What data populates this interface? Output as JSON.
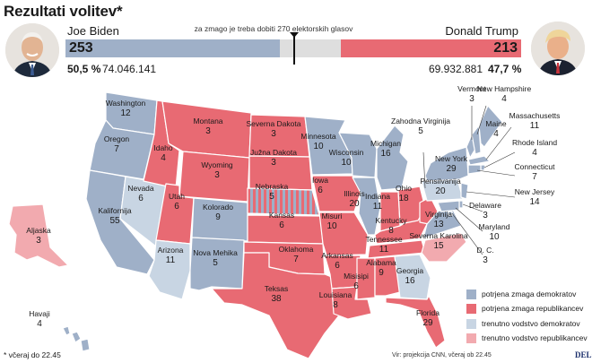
{
  "title": "Rezultati volitev*",
  "threshold_text": "za zmago je treba dobiti 270 elektorskih glasov",
  "colors": {
    "dem_won": "#9fb0c8",
    "rep_won": "#e86a73",
    "dem_lead": "#c8d5e3",
    "rep_lead": "#f2aaaf",
    "undecided": "#dedede"
  },
  "candidates": {
    "dem": {
      "name": "Joe Biden",
      "electoral_votes": "253",
      "percent": "50,5 %",
      "votes": "74.046.141",
      "avatar_icon": "biden-portrait"
    },
    "rep": {
      "name": "Donald Trump",
      "electoral_votes": "213",
      "percent": "47,7 %",
      "votes": "69.932.881",
      "avatar_icon": "trump-portrait"
    }
  },
  "bar": {
    "total": 538,
    "dem": 253,
    "rep": 213,
    "threshold": 270
  },
  "states": [
    {
      "name": "Washington",
      "ev": "12",
      "status": "dem_won"
    },
    {
      "name": "Oregon",
      "ev": "7",
      "status": "dem_won"
    },
    {
      "name": "Kalifornija",
      "ev": "55",
      "status": "dem_won"
    },
    {
      "name": "Nevada",
      "ev": "6",
      "status": "dem_lead"
    },
    {
      "name": "Idaho",
      "ev": "4",
      "status": "rep_won"
    },
    {
      "name": "Montana",
      "ev": "3",
      "status": "rep_won"
    },
    {
      "name": "Wyoming",
      "ev": "3",
      "status": "rep_won"
    },
    {
      "name": "Utah",
      "ev": "6",
      "status": "rep_won"
    },
    {
      "name": "Arizona",
      "ev": "11",
      "status": "dem_lead"
    },
    {
      "name": "Kolorado",
      "ev": "9",
      "status": "dem_won"
    },
    {
      "name": "Nova Mehika",
      "ev": "5",
      "status": "dem_won"
    },
    {
      "name": "Severna Dakota",
      "ev": "3",
      "status": "rep_won"
    },
    {
      "name": "Južna Dakota",
      "ev": "3",
      "status": "rep_won"
    },
    {
      "name": "Nebraska",
      "ev": "5",
      "status": "rep_won"
    },
    {
      "name": "Kansas",
      "ev": "6",
      "status": "rep_won"
    },
    {
      "name": "Oklahoma",
      "ev": "7",
      "status": "rep_won"
    },
    {
      "name": "Teksas",
      "ev": "38",
      "status": "rep_won"
    },
    {
      "name": "Minnesota",
      "ev": "10",
      "status": "dem_won"
    },
    {
      "name": "Iowa",
      "ev": "6",
      "status": "rep_won"
    },
    {
      "name": "Misuri",
      "ev": "10",
      "status": "rep_won"
    },
    {
      "name": "Arkansas",
      "ev": "6",
      "status": "rep_won"
    },
    {
      "name": "Louisiana",
      "ev": "8",
      "status": "rep_won"
    },
    {
      "name": "Wisconsin",
      "ev": "10",
      "status": "dem_won"
    },
    {
      "name": "Illinois",
      "ev": "20",
      "status": "dem_won"
    },
    {
      "name": "Misisipi",
      "ev": "6",
      "status": "rep_won"
    },
    {
      "name": "Michigan",
      "ev": "16",
      "status": "dem_won"
    },
    {
      "name": "Indiana",
      "ev": "11",
      "status": "rep_won"
    },
    {
      "name": "Kentucky",
      "ev": "8",
      "status": "rep_won"
    },
    {
      "name": "Tennessee",
      "ev": "11",
      "status": "rep_won"
    },
    {
      "name": "Alabama",
      "ev": "9",
      "status": "rep_won"
    },
    {
      "name": "Ohio",
      "ev": "18",
      "status": "rep_won"
    },
    {
      "name": "Georgia",
      "ev": "16",
      "status": "dem_lead"
    },
    {
      "name": "Florida",
      "ev": "29",
      "status": "rep_won"
    },
    {
      "name": "Severna Karolina",
      "ev": "15",
      "status": "rep_lead"
    },
    {
      "name": "Zahodna Virginija",
      "ev": "5",
      "status": "rep_won"
    },
    {
      "name": "Virginija",
      "ev": "13",
      "status": "dem_won"
    },
    {
      "name": "Pensilvanija",
      "ev": "20",
      "status": "dem_lead"
    },
    {
      "name": "New York",
      "ev": "29",
      "status": "dem_won"
    },
    {
      "name": "Vermont",
      "ev": "3",
      "status": "dem_won"
    },
    {
      "name": "New Hampshire",
      "ev": "4",
      "status": "dem_won"
    },
    {
      "name": "Maine",
      "ev": "4",
      "status": "dem_won"
    },
    {
      "name": "Massachusetts",
      "ev": "11",
      "status": "dem_won"
    },
    {
      "name": "Rhode Island",
      "ev": "4",
      "status": "dem_won"
    },
    {
      "name": "Connecticut",
      "ev": "7",
      "status": "dem_won"
    },
    {
      "name": "New Jersey",
      "ev": "14",
      "status": "dem_won"
    },
    {
      "name": "Delaware",
      "ev": "3",
      "status": "dem_won"
    },
    {
      "name": "Maryland",
      "ev": "10",
      "status": "dem_won"
    },
    {
      "name": "D. C.",
      "ev": "3",
      "status": "dem_won"
    },
    {
      "name": "Aljaska",
      "ev": "3",
      "status": "rep_lead"
    },
    {
      "name": "Havaji",
      "ev": "4",
      "status": "dem_won"
    }
  ],
  "legend": [
    {
      "label": "potrjena zmaga demokratov",
      "status": "dem_won"
    },
    {
      "label": "potrjena zmaga republikancev",
      "status": "rep_won"
    },
    {
      "label": "trenutno vodstvo demokratov",
      "status": "dem_lead"
    },
    {
      "label": "trenutno vodstvo republikancev",
      "status": "rep_lead"
    }
  ],
  "footnote": "* včeraj do 22.45",
  "source": "Vir: projekcija  CNN, včeraj ob 22.45",
  "logo": "DELO"
}
